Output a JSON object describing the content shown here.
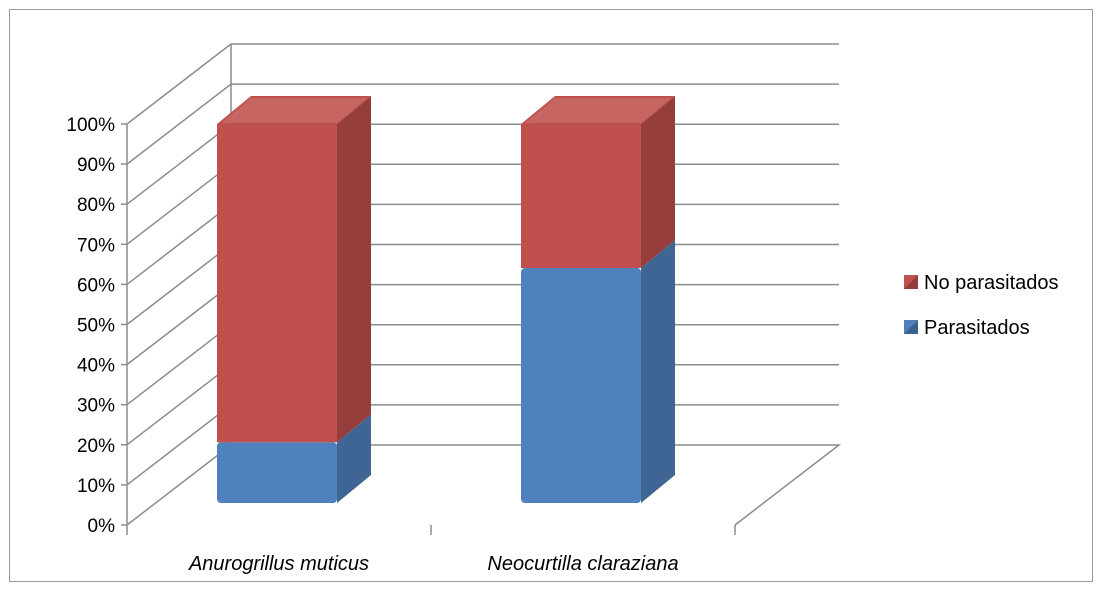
{
  "chart_data": {
    "type": "bar",
    "stacked": true,
    "percent_stacked": true,
    "three_d": true,
    "categories": [
      "Anurogrillus muticus",
      "Neocurtilla claraziana"
    ],
    "series": [
      {
        "name": "Parasitados",
        "values": [
          16,
          62
        ],
        "color": "#4f81bd"
      },
      {
        "name": "No parasitados",
        "values": [
          84,
          38
        ],
        "color": "#c0504d"
      }
    ],
    "ylim": [
      0,
      100
    ],
    "yticks": [
      "0%",
      "10%",
      "20%",
      "30%",
      "40%",
      "50%",
      "60%",
      "70%",
      "80%",
      "90%",
      "100%"
    ],
    "grid": true,
    "legend_position": "right"
  }
}
